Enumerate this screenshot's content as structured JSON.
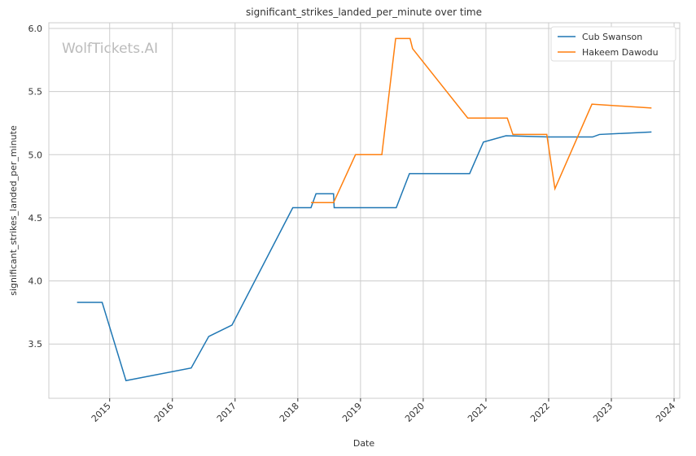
{
  "chart_data": {
    "type": "line",
    "title": "significant_strikes_landed_per_minute over time",
    "x_label": "Date",
    "y_label": "significant_strikes_landed_per_minute",
    "watermark": "WolfTickets.AI",
    "legend": "upper right",
    "grid": true,
    "xlim": [
      2014.03,
      2024.09
    ],
    "xticks": [
      2015,
      2016,
      2017,
      2018,
      2019,
      2020,
      2021,
      2022,
      2023,
      2024
    ],
    "ylim": [
      3.07,
      6.045
    ],
    "yticks": [
      3.5,
      {
        "value": 4,
        "label": "4.0"
      },
      4.5,
      {
        "value": 5,
        "label": "5.0"
      },
      5.5,
      {
        "value": 6,
        "label": "6.0"
      }
    ],
    "series": [
      {
        "name": "Cub Swanson",
        "color": "#1f77b4",
        "x": [
          2014.48,
          2014.88,
          2015.26,
          2016.3,
          2016.58,
          2016.95,
          2017.92,
          2018.21,
          2018.29,
          2018.57,
          2018.58,
          2019.57,
          2019.78,
          2020.74,
          2020.96,
          2021.32,
          2022.01,
          2022.7,
          2022.81,
          2023.64
        ],
        "values": [
          3.83,
          3.83,
          3.21,
          3.31,
          3.56,
          3.65,
          4.58,
          4.58,
          4.69,
          4.69,
          4.58,
          4.58,
          4.85,
          4.85,
          5.1,
          5.15,
          5.14,
          5.14,
          5.16,
          5.18
        ]
      },
      {
        "name": "Hakeem Dawodu",
        "color": "#ff7f0e",
        "x": [
          2018.21,
          2018.57,
          2018.92,
          2019.34,
          2019.56,
          2019.79,
          2019.83,
          2020.71,
          2021.34,
          2021.43,
          2021.97,
          2022.1,
          2022.69,
          2023.64
        ],
        "values": [
          4.62,
          4.62,
          5.0,
          5.0,
          5.92,
          5.92,
          5.84,
          5.29,
          5.29,
          5.16,
          5.16,
          4.73,
          5.4,
          5.37
        ]
      }
    ]
  }
}
